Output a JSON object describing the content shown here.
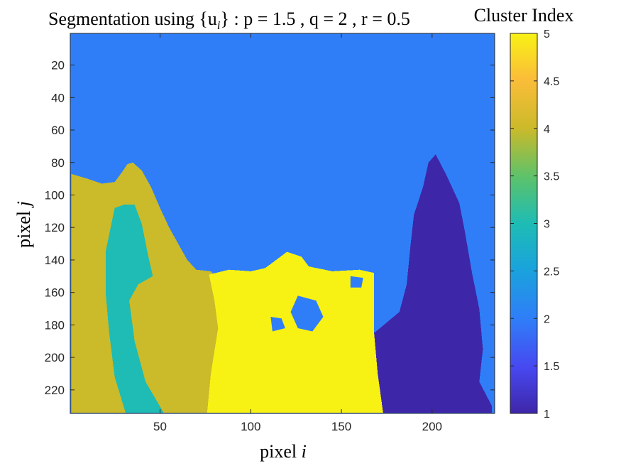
{
  "chart_data": {
    "type": "heatmap",
    "title": "Segmentation using {u",
    "title_sub": "i",
    "title_rest": "} : p = 1.5 , q = 2 , r = 0.5",
    "xlabel_prefix": "pixel ",
    "xlabel_var": "i",
    "ylabel_prefix": "pixel ",
    "ylabel_var": "j",
    "colorbar_label": "Cluster Index",
    "xlim": [
      1,
      234
    ],
    "ylim": [
      1,
      234
    ],
    "y_reversed": true,
    "xticks": [
      50,
      100,
      150,
      200
    ],
    "yticks": [
      20,
      40,
      60,
      80,
      100,
      120,
      140,
      160,
      180,
      200,
      220
    ],
    "colorbar_ticks": [
      1,
      1.5,
      2,
      2.5,
      3,
      3.5,
      4,
      4.5,
      5
    ],
    "clim": [
      1,
      5
    ],
    "colormap": "parula",
    "colors": {
      "1": "#3e26a8",
      "2": "#2f7ef8",
      "3": "#1ebcb4",
      "4": "#cbba2a",
      "5": "#f8f214"
    },
    "regions": [
      {
        "cluster": 4,
        "polygon": [
          [
            1,
            87
          ],
          [
            10,
            90
          ],
          [
            18,
            93
          ],
          [
            25,
            92
          ],
          [
            29,
            86
          ],
          [
            32,
            81
          ],
          [
            35,
            80
          ],
          [
            40,
            85
          ],
          [
            45,
            95
          ],
          [
            50,
            108
          ],
          [
            55,
            120
          ],
          [
            60,
            130
          ],
          [
            65,
            140
          ],
          [
            70,
            146
          ],
          [
            78,
            147
          ],
          [
            82,
            152
          ],
          [
            82,
            234
          ],
          [
            1,
            234
          ]
        ]
      },
      {
        "cluster": 3,
        "polygon": [
          [
            25,
            108
          ],
          [
            30,
            106
          ],
          [
            36,
            106
          ],
          [
            40,
            118
          ],
          [
            43,
            135
          ],
          [
            46,
            150
          ],
          [
            38,
            155
          ],
          [
            33,
            165
          ],
          [
            36,
            190
          ],
          [
            42,
            215
          ],
          [
            52,
            234
          ],
          [
            31,
            234
          ],
          [
            25,
            212
          ],
          [
            22,
            185
          ],
          [
            20,
            160
          ],
          [
            20,
            135
          ]
        ]
      },
      {
        "cluster": 5,
        "polygon": [
          [
            77,
            149
          ],
          [
            88,
            146
          ],
          [
            100,
            147
          ],
          [
            108,
            145
          ],
          [
            114,
            140
          ],
          [
            120,
            135
          ],
          [
            128,
            138
          ],
          [
            132,
            144
          ],
          [
            145,
            147
          ],
          [
            160,
            146
          ],
          [
            168,
            148
          ],
          [
            168,
            165
          ],
          [
            168,
            185
          ],
          [
            170,
            210
          ],
          [
            173,
            234
          ],
          [
            76,
            234
          ],
          [
            78,
            210
          ],
          [
            82,
            182
          ],
          [
            80,
            165
          ]
        ]
      },
      {
        "cluster": 1,
        "polygon": [
          [
            168,
            185
          ],
          [
            182,
            172
          ],
          [
            186,
            155
          ],
          [
            188,
            132
          ],
          [
            190,
            112
          ],
          [
            195,
            95
          ],
          [
            198,
            80
          ],
          [
            202,
            75
          ],
          [
            208,
            88
          ],
          [
            215,
            105
          ],
          [
            218,
            122
          ],
          [
            222,
            148
          ],
          [
            226,
            170
          ],
          [
            228,
            195
          ],
          [
            226,
            215
          ],
          [
            233,
            230
          ],
          [
            233,
            234
          ],
          [
            173,
            234
          ],
          [
            170,
            210
          ]
        ]
      }
    ],
    "holes": [
      {
        "cluster": 2,
        "polygon": [
          [
            126,
            162
          ],
          [
            136,
            165
          ],
          [
            140,
            175
          ],
          [
            134,
            184
          ],
          [
            126,
            182
          ],
          [
            122,
            172
          ]
        ]
      },
      {
        "cluster": 2,
        "polygon": [
          [
            111,
            175
          ],
          [
            117,
            176
          ],
          [
            119,
            182
          ],
          [
            112,
            184
          ]
        ]
      },
      {
        "cluster": 2,
        "polygon": [
          [
            155,
            150
          ],
          [
            162,
            151
          ],
          [
            161,
            157
          ],
          [
            155,
            157
          ]
        ]
      }
    ]
  }
}
